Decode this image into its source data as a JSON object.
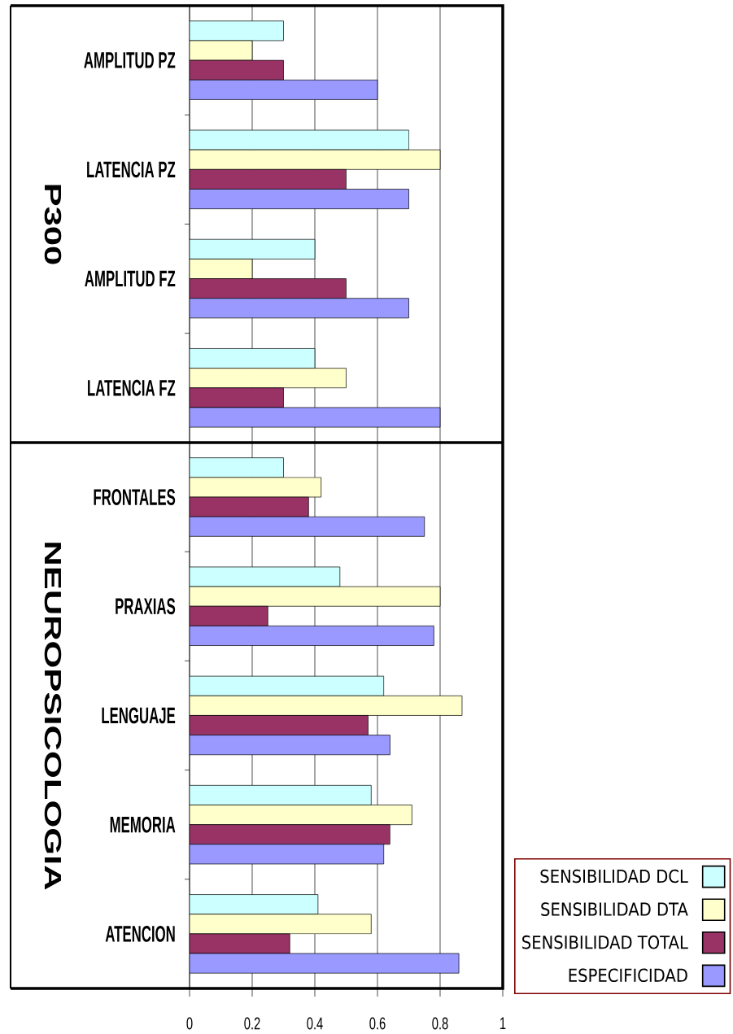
{
  "chart_data": [
    {
      "type": "bar",
      "orientation": "horizontal",
      "ylabel": "P300",
      "categories": [
        "AMPLITUD PZ",
        "LATENCIA PZ",
        "AMPLITUD FZ",
        "LATENCIA FZ"
      ],
      "series": [
        {
          "color": "#ccffff",
          "values": [
            0.3,
            0.7,
            0.4,
            0.4
          ]
        },
        {
          "color": "#ffffcc",
          "values": [
            0.2,
            0.8,
            0.2,
            0.5
          ]
        },
        {
          "color": "#993366",
          "values": [
            0.3,
            0.5,
            0.5,
            0.3
          ]
        },
        {
          "color": "#9999ff",
          "values": [
            0.6,
            0.7,
            0.7,
            0.8
          ]
        }
      ],
      "xlim": [
        0,
        1
      ],
      "xticks": [
        0,
        0.2,
        0.4,
        0.6,
        0.8,
        1
      ],
      "grid": "x",
      "tick_labels": "y"
    },
    {
      "type": "bar",
      "orientation": "horizontal",
      "ylabel": "NEUROPSICOLOGIA",
      "categories": [
        "FRONTALES",
        "PRAXIAS",
        "LENGUAJE",
        "MEMORIA",
        "ATENCION"
      ],
      "series": [
        {
          "name": "SENSIBILIDAD DCL",
          "color": "#ccffff",
          "values": [
            0.3,
            0.48,
            0.62,
            0.58,
            0.41
          ]
        },
        {
          "name": "SENSIBILIDAD DTA",
          "color": "#ffffcc",
          "values": [
            0.42,
            0.8,
            0.87,
            0.71,
            0.58
          ]
        },
        {
          "name": "SENSIBILIDAD TOTAL",
          "color": "#993366",
          "values": [
            0.38,
            0.25,
            0.57,
            0.64,
            0.32
          ]
        },
        {
          "name": "ESPECIFICIDAD",
          "color": "#9999ff",
          "values": [
            0.75,
            0.78,
            0.64,
            0.62,
            0.86
          ]
        }
      ],
      "xlim": [
        0,
        1
      ],
      "xticks": [
        0,
        0.2,
        0.4,
        0.6,
        0.8,
        1
      ],
      "grid": "x",
      "legend": "bottom right"
    }
  ]
}
